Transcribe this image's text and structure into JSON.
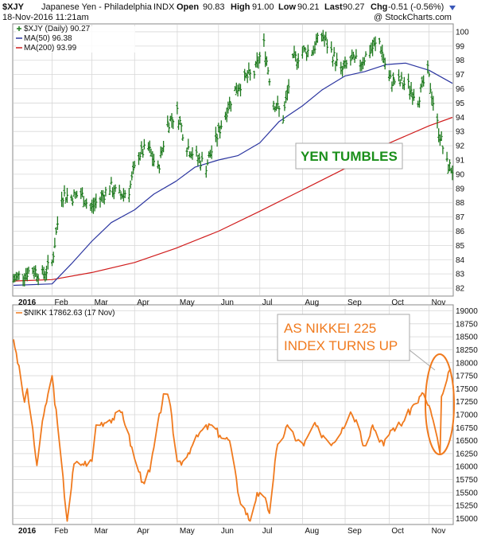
{
  "header": {
    "symbol": "$XJY",
    "name": "Japanese Yen - Philadelphia",
    "exchange": "INDX",
    "date": "18-Nov-2016 11:21am",
    "open_label": "Open",
    "open": "90.83",
    "high_label": "High",
    "high": "91.00",
    "low_label": "Low",
    "low": "90.21",
    "last_label": "Last",
    "last": "90.27",
    "chg_label": "Chg",
    "chg": "-0.51 (-0.56%)",
    "watermark": "@ StockCharts.com"
  },
  "colors": {
    "price": "#1e7a1e",
    "ma50": "#2b35a0",
    "ma200": "#d01c1c",
    "nikkei": "#f07a1e",
    "annotation_green": "#1a8f1a",
    "annotation_orange": "#f07a1e",
    "grid": "#d7d7d7"
  },
  "chart_data": [
    {
      "type": "ohlc",
      "legend": [
        "$XJY (Daily) 90.27",
        "MA(50) 96.38",
        "MA(200) 93.99"
      ],
      "months": [
        "2016",
        "Feb",
        "Mar",
        "Apr",
        "May",
        "Jun",
        "Jul",
        "Aug",
        "Sep",
        "Oct",
        "Nov"
      ],
      "y_ticks": [
        "82",
        "83",
        "84",
        "85",
        "86",
        "87",
        "88",
        "89",
        "90",
        "91",
        "92",
        "93",
        "94",
        "95",
        "96",
        "97",
        "98",
        "99",
        "100"
      ],
      "ylim": [
        81.5,
        100.5
      ],
      "x_start": "2016-01-04",
      "x_end": "2016-11-18",
      "close_series": [
        [
          "2016-01-04",
          82.6
        ],
        [
          "2016-01-11",
          83.0
        ],
        [
          "2016-01-18",
          83.3
        ],
        [
          "2016-01-25",
          82.9
        ],
        [
          "2016-02-01",
          83.8
        ],
        [
          "2016-02-08",
          88.6
        ],
        [
          "2016-02-15",
          88.4
        ],
        [
          "2016-02-22",
          88.6
        ],
        [
          "2016-02-29",
          87.6
        ],
        [
          "2016-03-07",
          88.3
        ],
        [
          "2016-03-14",
          89.1
        ],
        [
          "2016-03-21",
          88.5
        ],
        [
          "2016-03-28",
          88.9
        ],
        [
          "2016-04-04",
          91.4
        ],
        [
          "2016-04-11",
          91.8
        ],
        [
          "2016-04-18",
          90.3
        ],
        [
          "2016-04-25",
          93.6
        ],
        [
          "2016-05-02",
          94.3
        ],
        [
          "2016-05-09",
          92.0
        ],
        [
          "2016-05-16",
          91.2
        ],
        [
          "2016-05-23",
          90.6
        ],
        [
          "2016-05-30",
          92.4
        ],
        [
          "2016-06-06",
          94.3
        ],
        [
          "2016-06-13",
          95.9
        ],
        [
          "2016-06-20",
          96.7
        ],
        [
          "2016-06-27",
          97.1
        ],
        [
          "2016-07-04",
          99.1
        ],
        [
          "2016-07-11",
          95.1
        ],
        [
          "2016-07-18",
          94.0
        ],
        [
          "2016-07-25",
          97.9
        ],
        [
          "2016-08-01",
          98.6
        ],
        [
          "2016-08-08",
          98.7
        ],
        [
          "2016-08-15",
          99.8
        ],
        [
          "2016-08-22",
          98.6
        ],
        [
          "2016-08-29",
          97.2
        ],
        [
          "2016-09-05",
          98.0
        ],
        [
          "2016-09-12",
          97.8
        ],
        [
          "2016-09-19",
          98.7
        ],
        [
          "2016-09-26",
          99.3
        ],
        [
          "2016-10-03",
          96.6
        ],
        [
          "2016-10-10",
          96.5
        ],
        [
          "2016-10-17",
          96.2
        ],
        [
          "2016-10-24",
          95.3
        ],
        [
          "2016-10-31",
          97.2
        ],
        [
          "2016-11-07",
          93.5
        ],
        [
          "2016-11-14",
          90.7
        ],
        [
          "2016-11-18",
          90.3
        ]
      ],
      "ma50_series": [
        [
          "2016-01-04",
          82.2
        ],
        [
          "2016-02-01",
          82.3
        ],
        [
          "2016-02-15",
          83.7
        ],
        [
          "2016-03-01",
          85.3
        ],
        [
          "2016-03-15",
          86.6
        ],
        [
          "2016-04-01",
          87.5
        ],
        [
          "2016-04-15",
          88.6
        ],
        [
          "2016-05-01",
          89.5
        ],
        [
          "2016-05-15",
          90.5
        ],
        [
          "2016-06-01",
          91.0
        ],
        [
          "2016-06-15",
          91.3
        ],
        [
          "2016-07-01",
          92.2
        ],
        [
          "2016-07-15",
          93.7
        ],
        [
          "2016-08-01",
          94.8
        ],
        [
          "2016-08-15",
          95.9
        ],
        [
          "2016-09-01",
          96.9
        ],
        [
          "2016-09-15",
          97.2
        ],
        [
          "2016-10-01",
          97.7
        ],
        [
          "2016-10-15",
          97.8
        ],
        [
          "2016-11-01",
          97.3
        ],
        [
          "2016-11-18",
          96.38
        ]
      ],
      "ma200_series": [
        [
          "2016-01-04",
          82.5
        ],
        [
          "2016-02-01",
          82.6
        ],
        [
          "2016-03-01",
          83.1
        ],
        [
          "2016-04-01",
          83.8
        ],
        [
          "2016-05-01",
          84.8
        ],
        [
          "2016-06-01",
          86.0
        ],
        [
          "2016-07-01",
          87.4
        ],
        [
          "2016-08-01",
          88.9
        ],
        [
          "2016-09-01",
          90.4
        ],
        [
          "2016-10-01",
          92.1
        ],
        [
          "2016-11-01",
          93.4
        ],
        [
          "2016-11-18",
          93.99
        ]
      ],
      "annotation": "YEN TUMBLES"
    },
    {
      "type": "line",
      "legend": [
        "$NIKK 17862.63 (17 Nov)"
      ],
      "months": [
        "2016",
        "Feb",
        "Mar",
        "Apr",
        "May",
        "Jun",
        "Jul",
        "Aug",
        "Sep",
        "Oct",
        "Nov"
      ],
      "y_ticks": [
        "15000",
        "15250",
        "15500",
        "15750",
        "16000",
        "16250",
        "16500",
        "16750",
        "17000",
        "17250",
        "17500",
        "17750",
        "18000",
        "18250",
        "18500",
        "18750",
        "19000"
      ],
      "ylim": [
        14900,
        19100
      ],
      "x_start": "2016-01-04",
      "x_end": "2016-11-18",
      "series": [
        [
          "2016-01-04",
          18450
        ],
        [
          "2016-01-06",
          18190
        ],
        [
          "2016-01-12",
          17240
        ],
        [
          "2016-01-14",
          17500
        ],
        [
          "2016-01-21",
          16020
        ],
        [
          "2016-01-26",
          17000
        ],
        [
          "2016-02-01",
          17750
        ],
        [
          "2016-02-05",
          16800
        ],
        [
          "2016-02-12",
          14950
        ],
        [
          "2016-02-17",
          16050
        ],
        [
          "2016-02-23",
          16050
        ],
        [
          "2016-03-01",
          16100
        ],
        [
          "2016-03-04",
          16800
        ],
        [
          "2016-03-14",
          16900
        ],
        [
          "2016-03-23",
          17050
        ],
        [
          "2016-04-01",
          16150
        ],
        [
          "2016-04-07",
          15700
        ],
        [
          "2016-04-12",
          15900
        ],
        [
          "2016-04-22",
          17400
        ],
        [
          "2016-04-26",
          17300
        ],
        [
          "2016-05-02",
          16100
        ],
        [
          "2016-05-06",
          16100
        ],
        [
          "2016-05-13",
          16410
        ],
        [
          "2016-05-20",
          16700
        ],
        [
          "2016-05-27",
          16800
        ],
        [
          "2016-06-02",
          16600
        ],
        [
          "2016-06-09",
          16500
        ],
        [
          "2016-06-16",
          15400
        ],
        [
          "2016-06-24",
          14950
        ],
        [
          "2016-06-29",
          15500
        ],
        [
          "2016-07-06",
          15300
        ],
        [
          "2016-07-08",
          15100
        ],
        [
          "2016-07-13",
          16300
        ],
        [
          "2016-07-21",
          16800
        ],
        [
          "2016-07-28",
          16500
        ],
        [
          "2016-08-02",
          16400
        ],
        [
          "2016-08-09",
          16800
        ],
        [
          "2016-08-16",
          16600
        ],
        [
          "2016-08-23",
          16450
        ],
        [
          "2016-08-30",
          16750
        ],
        [
          "2016-09-05",
          17050
        ],
        [
          "2016-09-09",
          16900
        ],
        [
          "2016-09-15",
          16400
        ],
        [
          "2016-09-21",
          16800
        ],
        [
          "2016-09-29",
          16400
        ],
        [
          "2016-10-04",
          16700
        ],
        [
          "2016-10-13",
          16850
        ],
        [
          "2016-10-21",
          17200
        ],
        [
          "2016-10-28",
          17400
        ],
        [
          "2016-11-02",
          17100
        ],
        [
          "2016-11-09",
          16250
        ],
        [
          "2016-11-10",
          17350
        ],
        [
          "2016-11-14",
          17670
        ],
        [
          "2016-11-16",
          17860
        ],
        [
          "2016-11-17",
          17862.63
        ]
      ],
      "annotation": "AS NIKKEI 225\nINDEX TURNS UP"
    }
  ]
}
